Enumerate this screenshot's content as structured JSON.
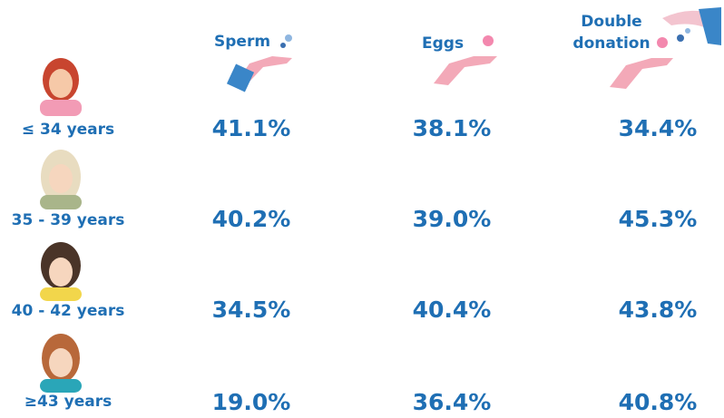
{
  "table": {
    "columns": [
      "Sperm",
      "Eggs",
      "Double donation"
    ],
    "rows": [
      {
        "label": "≤ 34 years",
        "cells": [
          "41.1%",
          "38.1%",
          "34.4%"
        ]
      },
      {
        "label": "35 - 39 years",
        "cells": [
          "40.2%",
          "39.0%",
          "45.3%"
        ]
      },
      {
        "label": "40 - 42 years",
        "cells": [
          "34.5%",
          "40.4%",
          "43.8%"
        ]
      },
      {
        "label": "≥43 years",
        "cells": [
          "19.0%",
          "36.4%",
          "40.8%"
        ]
      }
    ]
  }
}
